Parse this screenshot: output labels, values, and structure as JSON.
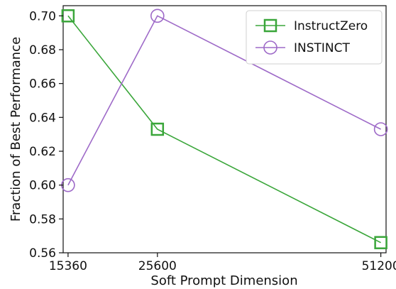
{
  "chart_data": {
    "type": "line",
    "xlabel": "Soft Prompt Dimension",
    "ylabel": "Fraction of Best Performance",
    "x_ticks": [
      "15360",
      "25600",
      "51200"
    ],
    "x_tick_values": [
      15360,
      25600,
      51200
    ],
    "y_ticks": [
      "0.56",
      "0.58",
      "0.60",
      "0.62",
      "0.64",
      "0.66",
      "0.68",
      "0.70"
    ],
    "y_tick_values": [
      0.56,
      0.58,
      0.6,
      0.62,
      0.64,
      0.66,
      0.68,
      0.7
    ],
    "xlim": [
      14800,
      51800
    ],
    "ylim": [
      0.56,
      0.706
    ],
    "grid": false,
    "legend_position": "top-right",
    "series": [
      {
        "name": "InstructZero",
        "color": "#3aa63a",
        "marker": "square",
        "x": [
          15360,
          25600,
          51200
        ],
        "y": [
          0.7,
          0.633,
          0.566
        ]
      },
      {
        "name": "INSTINCT",
        "color": "#9e6ac8",
        "marker": "circle",
        "x": [
          15360,
          25600,
          51200
        ],
        "y": [
          0.6,
          0.7,
          0.633
        ]
      }
    ]
  }
}
